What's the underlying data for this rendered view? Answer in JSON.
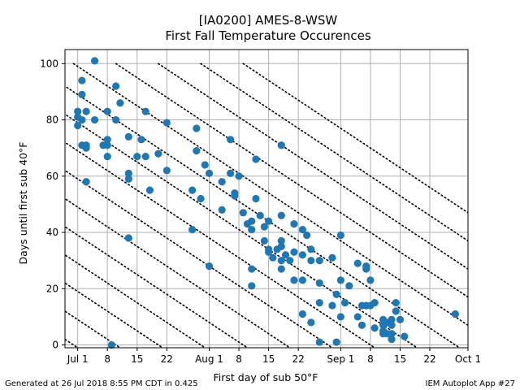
{
  "chart_data": {
    "type": "scatter",
    "title": "[IA0200] AMES-8-WSW",
    "subtitle": "First Fall Temperature Occurences",
    "xlabel": "First day of sub 50°F",
    "ylabel": "Days until first sub 40°F",
    "xlim": [
      "Jun 28",
      "Oct 1"
    ],
    "ylim": [
      -1,
      105
    ],
    "xticks": [
      {
        "label": "Jul 1",
        "date": "Jul 1"
      },
      {
        "label": "8",
        "date": "Jul 8"
      },
      {
        "label": "15",
        "date": "Jul 15"
      },
      {
        "label": "22",
        "date": "Jul 22"
      },
      {
        "label": "Aug 1",
        "date": "Aug 1"
      },
      {
        "label": "8",
        "date": "Aug 8"
      },
      {
        "label": "15",
        "date": "Aug 15"
      },
      {
        "label": "22",
        "date": "Aug 22"
      },
      {
        "label": "Sep 1",
        "date": "Sep 1"
      },
      {
        "label": "8",
        "date": "Sep 8"
      },
      {
        "label": "15",
        "date": "Sep 15"
      },
      {
        "label": "22",
        "date": "Sep 22"
      },
      {
        "label": "Oct 1",
        "date": "Oct 1"
      }
    ],
    "yticks": [
      0,
      20,
      40,
      60,
      80,
      100
    ],
    "grid": true,
    "guide_lines": "dotted diagonal lines of constant date of first sub 40°F, 10 days apart",
    "marker_color": "#1f77b4",
    "points": [
      {
        "x": "Jul 5",
        "y": 101
      },
      {
        "x": "Jul 2",
        "y": 94
      },
      {
        "x": "Jul 10",
        "y": 92
      },
      {
        "x": "Jul 2",
        "y": 89
      },
      {
        "x": "Jul 11",
        "y": 86
      },
      {
        "x": "Jul 1",
        "y": 83
      },
      {
        "x": "Jul 3",
        "y": 83
      },
      {
        "x": "Jul 8",
        "y": 83
      },
      {
        "x": "Jul 17",
        "y": 83
      },
      {
        "x": "Jul 1",
        "y": 81
      },
      {
        "x": "Jul 5",
        "y": 80
      },
      {
        "x": "Jul 10",
        "y": 80
      },
      {
        "x": "Jul 2",
        "y": 80
      },
      {
        "x": "Jul 22",
        "y": 79
      },
      {
        "x": "Jul 1",
        "y": 78
      },
      {
        "x": "Jul 29",
        "y": 77
      },
      {
        "x": "Jul 13",
        "y": 74
      },
      {
        "x": "Jul 16",
        "y": 73
      },
      {
        "x": "Aug 6",
        "y": 73
      },
      {
        "x": "Jul 8",
        "y": 73
      },
      {
        "x": "Jul 7",
        "y": 71
      },
      {
        "x": "Jul 2",
        "y": 71
      },
      {
        "x": "Jul 3",
        "y": 71
      },
      {
        "x": "Jul 8",
        "y": 71
      },
      {
        "x": "Aug 18",
        "y": 71
      },
      {
        "x": "Jul 3",
        "y": 70
      },
      {
        "x": "Jul 29",
        "y": 69
      },
      {
        "x": "Jul 20",
        "y": 68
      },
      {
        "x": "Jul 8",
        "y": 67
      },
      {
        "x": "Jul 15",
        "y": 67
      },
      {
        "x": "Jul 17",
        "y": 67
      },
      {
        "x": "Aug 12",
        "y": 66
      },
      {
        "x": "Jul 31",
        "y": 64
      },
      {
        "x": "Jul 22",
        "y": 62
      },
      {
        "x": "Aug 1",
        "y": 61
      },
      {
        "x": "Aug 6",
        "y": 61
      },
      {
        "x": "Jul 13",
        "y": 61
      },
      {
        "x": "Aug 8",
        "y": 60
      },
      {
        "x": "Jul 13",
        "y": 59
      },
      {
        "x": "Jul 3",
        "y": 58
      },
      {
        "x": "Aug 4",
        "y": 58
      },
      {
        "x": "Jul 28",
        "y": 55
      },
      {
        "x": "Jul 18",
        "y": 55
      },
      {
        "x": "Aug 7",
        "y": 54
      },
      {
        "x": "Aug 7",
        "y": 53
      },
      {
        "x": "Jul 30",
        "y": 52
      },
      {
        "x": "Aug 12",
        "y": 52
      },
      {
        "x": "Aug 4",
        "y": 48
      },
      {
        "x": "Aug 9",
        "y": 47
      },
      {
        "x": "Aug 18",
        "y": 46
      },
      {
        "x": "Aug 13",
        "y": 46
      },
      {
        "x": "Aug 15",
        "y": 44
      },
      {
        "x": "Aug 11",
        "y": 44
      },
      {
        "x": "Aug 10",
        "y": 43
      },
      {
        "x": "Aug 21",
        "y": 43
      },
      {
        "x": "Aug 14",
        "y": 42
      },
      {
        "x": "Jul 28",
        "y": 41
      },
      {
        "x": "Aug 11",
        "y": 41
      },
      {
        "x": "Aug 23",
        "y": 41
      },
      {
        "x": "Aug 24",
        "y": 39
      },
      {
        "x": "Sep 1",
        "y": 39
      },
      {
        "x": "Jul 13",
        "y": 38
      },
      {
        "x": "Aug 14",
        "y": 37
      },
      {
        "x": "Aug 18",
        "y": 37
      },
      {
        "x": "Aug 18",
        "y": 35
      },
      {
        "x": "Aug 15",
        "y": 34
      },
      {
        "x": "Aug 17",
        "y": 34
      },
      {
        "x": "Aug 25",
        "y": 34
      },
      {
        "x": "Aug 15",
        "y": 33
      },
      {
        "x": "Aug 19",
        "y": 32
      },
      {
        "x": "Aug 21",
        "y": 33
      },
      {
        "x": "Aug 23",
        "y": 32
      },
      {
        "x": "Aug 16",
        "y": 31
      },
      {
        "x": "Aug 20",
        "y": 30
      },
      {
        "x": "Aug 18",
        "y": 30
      },
      {
        "x": "Aug 25",
        "y": 30
      },
      {
        "x": "Aug 27",
        "y": 30
      },
      {
        "x": "Aug 30",
        "y": 31
      },
      {
        "x": "Sep 5",
        "y": 29
      },
      {
        "x": "Aug 1",
        "y": 28
      },
      {
        "x": "Sep 7",
        "y": 28
      },
      {
        "x": "Sep 7",
        "y": 27
      },
      {
        "x": "Aug 11",
        "y": 27
      },
      {
        "x": "Aug 18",
        "y": 27
      },
      {
        "x": "Sep 8",
        "y": 23
      },
      {
        "x": "Aug 21",
        "y": 23
      },
      {
        "x": "Aug 23",
        "y": 23
      },
      {
        "x": "Sep 1",
        "y": 23
      },
      {
        "x": "Aug 27",
        "y": 22
      },
      {
        "x": "Sep 3",
        "y": 21
      },
      {
        "x": "Aug 11",
        "y": 21
      },
      {
        "x": "Aug 31",
        "y": 18
      },
      {
        "x": "Sep 2",
        "y": 15
      },
      {
        "x": "Sep 9",
        "y": 15
      },
      {
        "x": "Sep 14",
        "y": 15
      },
      {
        "x": "Aug 27",
        "y": 15
      },
      {
        "x": "Sep 7",
        "y": 14
      },
      {
        "x": "Sep 8",
        "y": 14
      },
      {
        "x": "Sep 6",
        "y": 14
      },
      {
        "x": "Aug 30",
        "y": 14
      },
      {
        "x": "Sep 14",
        "y": 12
      },
      {
        "x": "Aug 23",
        "y": 11
      },
      {
        "x": "Sep 28",
        "y": 11
      },
      {
        "x": "Sep 1",
        "y": 10
      },
      {
        "x": "Sep 5",
        "y": 10
      },
      {
        "x": "Sep 15",
        "y": 9
      },
      {
        "x": "Sep 11",
        "y": 9
      },
      {
        "x": "Sep 12",
        "y": 8
      },
      {
        "x": "Sep 13",
        "y": 9
      },
      {
        "x": "Aug 25",
        "y": 8
      },
      {
        "x": "Sep 6",
        "y": 7
      },
      {
        "x": "Sep 11",
        "y": 7
      },
      {
        "x": "Sep 13",
        "y": 7
      },
      {
        "x": "Sep 9",
        "y": 6
      },
      {
        "x": "Sep 11",
        "y": 5
      },
      {
        "x": "Sep 12",
        "y": 4
      },
      {
        "x": "Sep 11",
        "y": 4
      },
      {
        "x": "Sep 13",
        "y": 4
      },
      {
        "x": "Sep 16",
        "y": 3
      },
      {
        "x": "Sep 13",
        "y": 2
      },
      {
        "x": "Aug 27",
        "y": 1
      },
      {
        "x": "Aug 31",
        "y": 1
      },
      {
        "x": "Jul 9",
        "y": 0
      }
    ]
  },
  "footer": {
    "left": "Generated at 26 Jul 2018 8:55 PM CDT in 0.425",
    "right": "IEM Autoplot App #27"
  }
}
